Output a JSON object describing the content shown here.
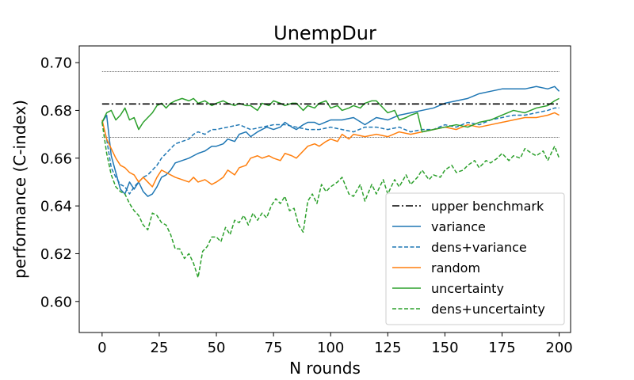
{
  "chart_data": {
    "type": "line",
    "title": "UnempDur",
    "xlabel": "N rounds",
    "ylabel": "performance (C-index)",
    "xlim": [
      -10,
      205
    ],
    "ylim": [
      0.587,
      0.707
    ],
    "xticks": [
      0,
      25,
      50,
      75,
      100,
      125,
      150,
      175,
      200
    ],
    "yticks": [
      0.6,
      0.62,
      0.64,
      0.66,
      0.68,
      0.7
    ],
    "ytick_labels": [
      "0.60",
      "0.62",
      "0.64",
      "0.66",
      "0.68",
      "0.70"
    ],
    "grid": false,
    "legend_position": "lower-right",
    "benchmark": {
      "name": "upper benchmark",
      "value": 0.6827,
      "upper": 0.6963,
      "lower": 0.6687,
      "x_range": [
        0,
        200
      ]
    },
    "series": [
      {
        "name": "variance",
        "color": "#1f77b4",
        "dash": "solid",
        "x": [
          0,
          2,
          4,
          6,
          8,
          10,
          12,
          14,
          16,
          18,
          20,
          22,
          24,
          26,
          28,
          30,
          32,
          35,
          38,
          40,
          42,
          45,
          48,
          50,
          53,
          55,
          58,
          60,
          63,
          65,
          68,
          70,
          72,
          75,
          78,
          80,
          83,
          85,
          88,
          90,
          93,
          95,
          100,
          105,
          110,
          115,
          120,
          125,
          130,
          135,
          140,
          145,
          150,
          155,
          160,
          165,
          170,
          175,
          180,
          185,
          190,
          195,
          198,
          200
        ],
        "y": [
          0.675,
          0.678,
          0.661,
          0.654,
          0.647,
          0.645,
          0.65,
          0.647,
          0.65,
          0.646,
          0.644,
          0.645,
          0.648,
          0.652,
          0.653,
          0.655,
          0.658,
          0.659,
          0.66,
          0.661,
          0.662,
          0.663,
          0.665,
          0.665,
          0.666,
          0.668,
          0.667,
          0.67,
          0.671,
          0.669,
          0.671,
          0.672,
          0.673,
          0.672,
          0.673,
          0.675,
          0.673,
          0.672,
          0.674,
          0.675,
          0.675,
          0.674,
          0.676,
          0.676,
          0.677,
          0.674,
          0.677,
          0.676,
          0.678,
          0.679,
          0.68,
          0.681,
          0.683,
          0.684,
          0.685,
          0.687,
          0.688,
          0.689,
          0.689,
          0.689,
          0.69,
          0.689,
          0.69,
          0.688
        ]
      },
      {
        "name": "dens+variance",
        "color": "#1f77b4",
        "dash": "dashed",
        "x": [
          0,
          2,
          4,
          6,
          8,
          10,
          12,
          14,
          16,
          18,
          20,
          22,
          24,
          26,
          28,
          30,
          32,
          35,
          38,
          40,
          42,
          45,
          48,
          50,
          55,
          60,
          65,
          70,
          75,
          80,
          85,
          90,
          95,
          100,
          105,
          110,
          115,
          120,
          125,
          130,
          135,
          140,
          145,
          150,
          155,
          160,
          165,
          170,
          175,
          180,
          185,
          190,
          195,
          198,
          200
        ],
        "y": [
          0.675,
          0.668,
          0.656,
          0.652,
          0.649,
          0.648,
          0.645,
          0.648,
          0.65,
          0.652,
          0.653,
          0.655,
          0.657,
          0.66,
          0.662,
          0.664,
          0.666,
          0.667,
          0.668,
          0.67,
          0.671,
          0.67,
          0.672,
          0.672,
          0.673,
          0.674,
          0.672,
          0.673,
          0.674,
          0.674,
          0.673,
          0.672,
          0.672,
          0.673,
          0.672,
          0.671,
          0.673,
          0.673,
          0.672,
          0.673,
          0.671,
          0.672,
          0.672,
          0.674,
          0.673,
          0.675,
          0.674,
          0.676,
          0.677,
          0.678,
          0.678,
          0.679,
          0.68,
          0.681,
          0.681
        ]
      },
      {
        "name": "random",
        "color": "#ff7f0e",
        "dash": "solid",
        "x": [
          0,
          2,
          4,
          6,
          8,
          10,
          12,
          14,
          16,
          18,
          20,
          22,
          24,
          26,
          28,
          30,
          32,
          35,
          38,
          40,
          42,
          45,
          48,
          50,
          53,
          55,
          58,
          60,
          63,
          65,
          68,
          70,
          73,
          75,
          78,
          80,
          83,
          85,
          88,
          90,
          93,
          95,
          98,
          100,
          103,
          105,
          108,
          110,
          115,
          120,
          125,
          130,
          135,
          140,
          145,
          150,
          155,
          160,
          165,
          170,
          175,
          180,
          185,
          190,
          195,
          198,
          200
        ],
        "y": [
          0.676,
          0.668,
          0.664,
          0.66,
          0.657,
          0.656,
          0.654,
          0.653,
          0.65,
          0.652,
          0.65,
          0.648,
          0.652,
          0.655,
          0.654,
          0.653,
          0.652,
          0.651,
          0.65,
          0.652,
          0.65,
          0.651,
          0.649,
          0.65,
          0.652,
          0.655,
          0.653,
          0.656,
          0.657,
          0.66,
          0.661,
          0.66,
          0.661,
          0.66,
          0.659,
          0.662,
          0.661,
          0.66,
          0.663,
          0.665,
          0.666,
          0.665,
          0.667,
          0.668,
          0.667,
          0.67,
          0.668,
          0.67,
          0.669,
          0.67,
          0.669,
          0.671,
          0.67,
          0.671,
          0.672,
          0.673,
          0.672,
          0.674,
          0.673,
          0.674,
          0.675,
          0.676,
          0.677,
          0.677,
          0.678,
          0.679,
          0.678
        ]
      },
      {
        "name": "uncertainty",
        "color": "#2ca02c",
        "dash": "solid",
        "x": [
          0,
          2,
          4,
          6,
          8,
          10,
          12,
          14,
          16,
          18,
          20,
          22,
          24,
          26,
          28,
          30,
          32,
          35,
          38,
          40,
          42,
          45,
          48,
          50,
          53,
          55,
          58,
          60,
          63,
          65,
          68,
          70,
          73,
          75,
          78,
          80,
          83,
          85,
          88,
          90,
          93,
          95,
          98,
          100,
          103,
          105,
          108,
          110,
          113,
          115,
          118,
          120,
          125,
          128,
          130,
          133,
          135,
          138,
          140,
          145,
          150,
          155,
          160,
          165,
          170,
          175,
          180,
          185,
          190,
          195,
          198,
          200
        ],
        "y": [
          0.675,
          0.679,
          0.68,
          0.676,
          0.678,
          0.681,
          0.676,
          0.677,
          0.672,
          0.675,
          0.677,
          0.679,
          0.682,
          0.683,
          0.681,
          0.683,
          0.684,
          0.685,
          0.684,
          0.685,
          0.683,
          0.684,
          0.682,
          0.683,
          0.684,
          0.683,
          0.682,
          0.683,
          0.682,
          0.682,
          0.68,
          0.683,
          0.682,
          0.684,
          0.683,
          0.682,
          0.683,
          0.683,
          0.68,
          0.682,
          0.681,
          0.683,
          0.684,
          0.681,
          0.682,
          0.68,
          0.681,
          0.682,
          0.681,
          0.683,
          0.684,
          0.684,
          0.679,
          0.68,
          0.676,
          0.677,
          0.678,
          0.679,
          0.671,
          0.672,
          0.673,
          0.674,
          0.673,
          0.675,
          0.676,
          0.678,
          0.68,
          0.679,
          0.681,
          0.682,
          0.684,
          0.685
        ]
      },
      {
        "name": "dens+uncertainty",
        "color": "#2ca02c",
        "dash": "dashed",
        "x": [
          0,
          2,
          4,
          6,
          8,
          10,
          12,
          14,
          16,
          18,
          20,
          22,
          24,
          26,
          28,
          30,
          32,
          34,
          36,
          38,
          40,
          42,
          44,
          46,
          48,
          50,
          52,
          54,
          56,
          58,
          60,
          62,
          64,
          66,
          68,
          70,
          72,
          74,
          76,
          78,
          80,
          82,
          84,
          86,
          88,
          90,
          92,
          94,
          96,
          98,
          100,
          103,
          105,
          108,
          110,
          113,
          115,
          118,
          120,
          123,
          125,
          128,
          130,
          133,
          135,
          138,
          140,
          143,
          145,
          148,
          150,
          153,
          155,
          158,
          160,
          163,
          165,
          168,
          170,
          173,
          175,
          178,
          180,
          183,
          185,
          188,
          190,
          193,
          195,
          198,
          200
        ],
        "y": [
          0.675,
          0.662,
          0.653,
          0.648,
          0.646,
          0.645,
          0.641,
          0.638,
          0.636,
          0.632,
          0.63,
          0.637,
          0.636,
          0.633,
          0.632,
          0.628,
          0.622,
          0.622,
          0.618,
          0.62,
          0.616,
          0.61,
          0.621,
          0.623,
          0.627,
          0.627,
          0.625,
          0.631,
          0.628,
          0.634,
          0.633,
          0.636,
          0.632,
          0.637,
          0.634,
          0.637,
          0.635,
          0.64,
          0.643,
          0.641,
          0.644,
          0.638,
          0.639,
          0.632,
          0.629,
          0.642,
          0.645,
          0.641,
          0.649,
          0.646,
          0.648,
          0.65,
          0.652,
          0.645,
          0.644,
          0.649,
          0.642,
          0.649,
          0.645,
          0.651,
          0.645,
          0.651,
          0.648,
          0.653,
          0.649,
          0.652,
          0.655,
          0.651,
          0.653,
          0.652,
          0.655,
          0.657,
          0.654,
          0.655,
          0.657,
          0.659,
          0.656,
          0.659,
          0.658,
          0.66,
          0.662,
          0.659,
          0.661,
          0.66,
          0.664,
          0.662,
          0.661,
          0.663,
          0.659,
          0.665,
          0.66
        ]
      }
    ]
  }
}
